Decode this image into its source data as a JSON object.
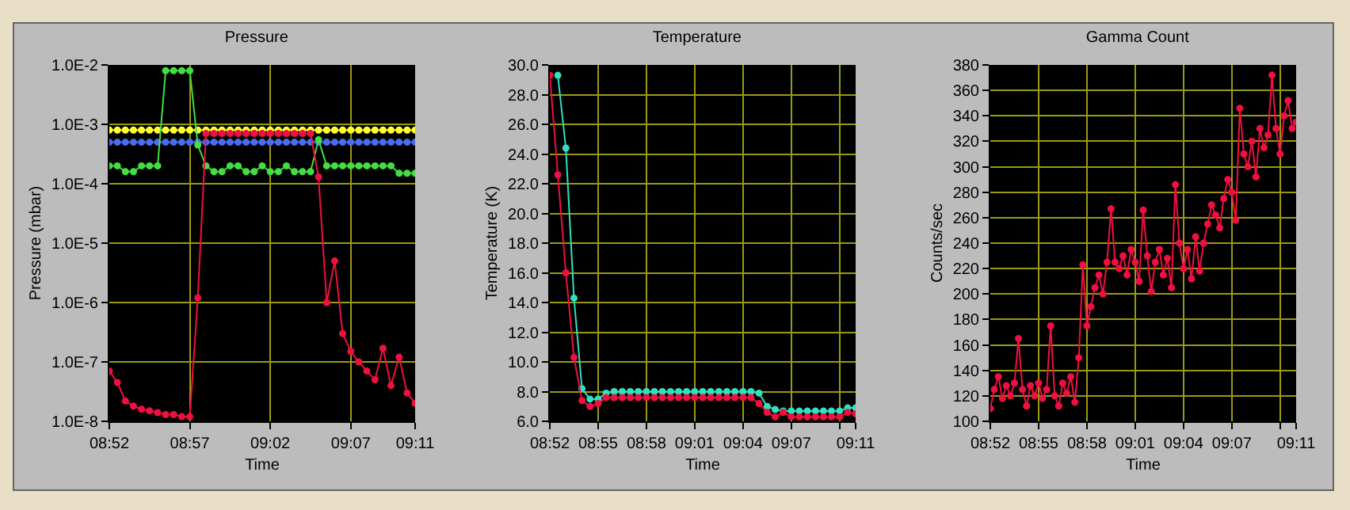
{
  "chart_data": [
    {
      "type": "line",
      "title": "Pressure",
      "xlabel": "Time",
      "ylabel": "Pressure (mbar)",
      "log": "y",
      "grid": true,
      "marker": "circle",
      "x": [
        8.8667,
        8.875,
        8.8833,
        8.8917,
        8.9,
        8.9083,
        8.9167,
        8.925,
        8.9333,
        8.9417,
        8.95,
        8.9583,
        8.9667,
        8.975,
        8.9833,
        8.9917,
        9.0,
        9.0083,
        9.0167,
        9.025,
        9.0333,
        9.0417,
        9.05,
        9.0583,
        9.0667,
        9.075,
        9.0833,
        9.0917,
        9.1,
        9.1083,
        9.1167,
        9.125,
        9.1333,
        9.1417,
        9.15,
        9.1583,
        9.1667,
        9.175,
        9.1833
      ],
      "xlim": [
        8.8667,
        9.1833
      ],
      "xticks": [
        {
          "value": 8.8667,
          "label": "08:52"
        },
        {
          "value": 8.95,
          "label": "08:57"
        },
        {
          "value": 9.0333,
          "label": "09:02"
        },
        {
          "value": 9.1167,
          "label": "09:07"
        },
        {
          "value": 9.1833,
          "label": "09:11"
        }
      ],
      "ylim": [
        1e-08,
        0.01
      ],
      "yticks": [
        {
          "value": 1e-08,
          "label": "1.0E-8"
        },
        {
          "value": 1e-07,
          "label": "1.0E-7"
        },
        {
          "value": 1e-06,
          "label": "1.0E-6"
        },
        {
          "value": 1e-05,
          "label": "1.0E-5"
        },
        {
          "value": 0.0001,
          "label": "1.0E-4"
        },
        {
          "value": 0.001,
          "label": "1.0E-3"
        },
        {
          "value": 0.01,
          "label": "1.0E-2"
        }
      ],
      "series": [
        {
          "color": "#ffff30",
          "values": [
            0.0008,
            0.0008,
            0.0008,
            0.0008,
            0.0008,
            0.0008,
            0.0008,
            0.0008,
            0.0008,
            0.0008,
            0.0008,
            0.0008,
            0.0008,
            0.0008,
            0.0008,
            0.0008,
            0.0008,
            0.0008,
            0.0008,
            0.0008,
            0.0008,
            0.0008,
            0.0008,
            0.0008,
            0.0008,
            0.0008,
            0.0008,
            0.0008,
            0.0008,
            0.0008,
            0.0008,
            0.0008,
            0.0008,
            0.0008,
            0.0008,
            0.0008,
            0.0008,
            0.0008,
            0.0008
          ]
        },
        {
          "color": "#4a6cf0",
          "values": [
            0.0005,
            0.0005,
            0.0005,
            0.0005,
            0.0005,
            0.0005,
            0.0005,
            0.0005,
            0.0005,
            0.0005,
            0.0005,
            0.0005,
            0.0005,
            0.0005,
            0.0005,
            0.0005,
            0.0005,
            0.0005,
            0.0005,
            0.0005,
            0.0005,
            0.0005,
            0.0005,
            0.0005,
            0.0005,
            0.0005,
            0.0005,
            0.0005,
            0.0005,
            0.0005,
            0.0005,
            0.0005,
            0.0005,
            0.0005,
            0.0005,
            0.0005,
            0.0005,
            0.0005,
            0.0005
          ]
        },
        {
          "color": "#40e040",
          "values": [
            0.0002,
            0.0002,
            0.00016,
            0.00016,
            0.0002,
            0.0002,
            0.0002,
            0.008,
            0.008,
            0.008,
            0.008,
            0.00045,
            0.0002,
            0.00016,
            0.00016,
            0.0002,
            0.0002,
            0.00016,
            0.00016,
            0.0002,
            0.00016,
            0.00016,
            0.0002,
            0.00016,
            0.00016,
            0.00016,
            0.00055,
            0.0002,
            0.0002,
            0.0002,
            0.0002,
            0.0002,
            0.0002,
            0.0002,
            0.0002,
            0.0002,
            0.00015,
            0.00015,
            0.00015
          ]
        },
        {
          "color": "#f01040",
          "values": [
            7e-08,
            4.5e-08,
            2.2e-08,
            1.8e-08,
            1.6e-08,
            1.5e-08,
            1.4e-08,
            1.3e-08,
            1.3e-08,
            1.2e-08,
            1.2e-08,
            1.2e-06,
            0.0007,
            0.0007,
            0.0007,
            0.0007,
            0.0007,
            0.0007,
            0.0007,
            0.0007,
            0.0007,
            0.0007,
            0.0007,
            0.0007,
            0.0007,
            0.0007,
            0.00013,
            1e-06,
            5e-06,
            3e-07,
            1.5e-07,
            1e-07,
            7e-08,
            5e-08,
            1.7e-07,
            4e-08,
            1.2e-07,
            3e-08,
            2e-08
          ]
        }
      ]
    },
    {
      "type": "line",
      "title": "Temperature",
      "xlabel": "Time",
      "ylabel": "Temperature (K)",
      "grid": true,
      "marker": "circle",
      "x": [
        8.8667,
        8.875,
        8.8833,
        8.8917,
        8.9,
        8.9083,
        8.9167,
        8.925,
        8.9333,
        8.9417,
        8.95,
        8.9583,
        8.9667,
        8.975,
        8.9833,
        8.9917,
        9.0,
        9.0083,
        9.0167,
        9.025,
        9.0333,
        9.0417,
        9.05,
        9.0583,
        9.0667,
        9.075,
        9.0833,
        9.0917,
        9.1,
        9.1083,
        9.1167,
        9.125,
        9.1333,
        9.1417,
        9.15,
        9.1583,
        9.1667,
        9.175,
        9.1833
      ],
      "xlim": [
        8.8667,
        9.1833
      ],
      "xticks": [
        {
          "value": 8.8667,
          "label": "08:52"
        },
        {
          "value": 8.9167,
          "label": "08:55"
        },
        {
          "value": 8.9667,
          "label": "08:58"
        },
        {
          "value": 9.0167,
          "label": "09:01"
        },
        {
          "value": 9.0667,
          "label": "09:04"
        },
        {
          "value": 9.1167,
          "label": "09:07"
        },
        {
          "value": 9.1667,
          "label": null
        },
        {
          "value": 9.1833,
          "label": "09:11"
        }
      ],
      "ylim": [
        6,
        30
      ],
      "yticks": [
        {
          "value": 6,
          "label": "6.0"
        },
        {
          "value": 8,
          "label": "8.0"
        },
        {
          "value": 10,
          "label": "10.0"
        },
        {
          "value": 12,
          "label": "12.0"
        },
        {
          "value": 14,
          "label": "14.0"
        },
        {
          "value": 16,
          "label": "16.0"
        },
        {
          "value": 18,
          "label": "18.0"
        },
        {
          "value": 20,
          "label": "20.0"
        },
        {
          "value": 22,
          "label": "22.0"
        },
        {
          "value": 24,
          "label": "24.0"
        },
        {
          "value": 26,
          "label": "26.0"
        },
        {
          "value": 28,
          "label": "28.0"
        },
        {
          "value": 30,
          "label": "30.0"
        }
      ],
      "series": [
        {
          "color": "#30e0c0",
          "values": [
            null,
            29.3,
            24.4,
            14.3,
            8.2,
            7.5,
            7.5,
            7.9,
            8.0,
            8.0,
            8.0,
            8.0,
            8.0,
            8.0,
            8.0,
            8.0,
            8.0,
            8.0,
            8.0,
            8.0,
            8.0,
            8.0,
            8.0,
            8.0,
            8.0,
            8.0,
            7.9,
            7.0,
            6.8,
            6.7,
            6.7,
            6.7,
            6.7,
            6.7,
            6.7,
            6.7,
            6.7,
            6.9,
            6.9
          ]
        },
        {
          "color": "#f01040",
          "values": [
            29.3,
            22.6,
            16.0,
            10.3,
            7.4,
            7.0,
            7.2,
            7.6,
            7.6,
            7.6,
            7.6,
            7.6,
            7.6,
            7.6,
            7.6,
            7.6,
            7.6,
            7.6,
            7.6,
            7.6,
            7.6,
            7.6,
            7.6,
            7.6,
            7.6,
            7.6,
            7.2,
            6.6,
            6.3,
            6.6,
            6.3,
            6.3,
            6.3,
            6.3,
            6.3,
            6.3,
            6.3,
            6.6,
            6.5
          ]
        }
      ]
    },
    {
      "type": "line",
      "title": "Gamma Count",
      "xlabel": "Time",
      "ylabel": "Counts/sec",
      "grid": true,
      "marker": "circle",
      "x": [
        8.8667,
        8.8708,
        8.875,
        8.8792,
        8.8833,
        8.8875,
        8.8917,
        8.8958,
        8.9,
        8.9042,
        8.9083,
        8.9125,
        8.9167,
        8.9208,
        8.925,
        8.9292,
        8.9333,
        8.9375,
        8.9417,
        8.9458,
        8.95,
        8.9542,
        8.9583,
        8.9625,
        8.9667,
        8.9708,
        8.975,
        8.9792,
        8.9833,
        8.9875,
        8.9917,
        8.9958,
        9.0,
        9.0042,
        9.0083,
        9.0125,
        9.0167,
        9.0208,
        9.025,
        9.0292,
        9.0333,
        9.0375,
        9.0417,
        9.0458,
        9.05,
        9.0542,
        9.0583,
        9.0625,
        9.0667,
        9.0708,
        9.075,
        9.0792,
        9.0833,
        9.0875,
        9.0917,
        9.0958,
        9.1,
        9.1042,
        9.1083,
        9.1125,
        9.1167,
        9.1208,
        9.125,
        9.1292,
        9.1333,
        9.1375,
        9.1417,
        9.1458,
        9.15,
        9.1542,
        9.1583,
        9.1625,
        9.1667,
        9.1708,
        9.175,
        9.1792,
        9.1833
      ],
      "xlim": [
        8.8667,
        9.1833
      ],
      "xticks": [
        {
          "value": 8.8667,
          "label": "08:52"
        },
        {
          "value": 8.9167,
          "label": "08:55"
        },
        {
          "value": 8.9667,
          "label": "08:58"
        },
        {
          "value": 9.0167,
          "label": "09:01"
        },
        {
          "value": 9.0667,
          "label": "09:04"
        },
        {
          "value": 9.1167,
          "label": "09:07"
        },
        {
          "value": 9.1667,
          "label": null
        },
        {
          "value": 9.1833,
          "label": "09:11"
        }
      ],
      "ylim": [
        100,
        380
      ],
      "yticks": [
        100,
        120,
        140,
        160,
        180,
        200,
        220,
        240,
        260,
        280,
        300,
        320,
        340,
        360,
        380
      ],
      "series": [
        {
          "color": "#f01040",
          "values": [
            110,
            125,
            135,
            118,
            128,
            120,
            130,
            165,
            125,
            112,
            128,
            120,
            130,
            118,
            125,
            175,
            120,
            112,
            130,
            122,
            135,
            115,
            150,
            223,
            175,
            190,
            205,
            215,
            200,
            225,
            267,
            225,
            220,
            230,
            215,
            235,
            225,
            210,
            266,
            230,
            202,
            225,
            235,
            215,
            228,
            205,
            286,
            240,
            220,
            235,
            212,
            245,
            218,
            240,
            255,
            270,
            262,
            252,
            275,
            290,
            280,
            258,
            346,
            310,
            300,
            320,
            292,
            330,
            315,
            325,
            372,
            330,
            310,
            340,
            352,
            330,
            335
          ]
        }
      ]
    }
  ]
}
